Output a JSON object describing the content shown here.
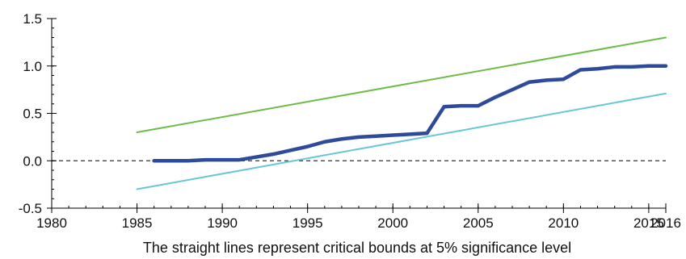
{
  "chart_data": {
    "type": "line",
    "title": "",
    "xlabel": "The straight lines represent critical bounds at 5% significance level",
    "ylabel": "",
    "xlim": [
      1980,
      2016
    ],
    "ylim": [
      -0.5,
      1.5
    ],
    "x_ticks": [
      "1980",
      "1985",
      "1990",
      "1995",
      "2000",
      "2005",
      "2010",
      "2015",
      "2016"
    ],
    "y_ticks": [
      "-0.5",
      "0.0",
      "0.5",
      "1.0",
      "1.5"
    ],
    "x_tick_values": [
      1980,
      1985,
      1990,
      1995,
      2000,
      2005,
      2010,
      2015,
      2016
    ],
    "y_tick_values": [
      -0.5,
      0.0,
      0.5,
      1.0,
      1.5
    ],
    "reference_line": {
      "y": 0.0,
      "style": "dashed",
      "color": "#333333"
    },
    "series": [
      {
        "color": "#6cbd45",
        "x": [
          1985,
          2016
        ],
        "y": [
          0.3,
          1.3
        ]
      },
      {
        "color": "#66c7d6",
        "x": [
          1985,
          2016
        ],
        "y": [
          -0.3,
          0.71
        ]
      },
      {
        "color": "#2e4a9a",
        "x": [
          1986,
          1987,
          1988,
          1989,
          1990,
          1991,
          1992,
          1993,
          1994,
          1995,
          1996,
          1997,
          1998,
          1999,
          2000,
          2001,
          2002,
          2003,
          2004,
          2005,
          2006,
          2007,
          2008,
          2009,
          2010,
          2011,
          2012,
          2013,
          2014,
          2015,
          2016
        ],
        "y": [
          0.0,
          0.0,
          0.0,
          0.01,
          0.01,
          0.01,
          0.04,
          0.07,
          0.11,
          0.15,
          0.2,
          0.23,
          0.25,
          0.26,
          0.27,
          0.28,
          0.29,
          0.57,
          0.58,
          0.58,
          0.67,
          0.75,
          0.83,
          0.85,
          0.86,
          0.96,
          0.97,
          0.99,
          0.99,
          1.0,
          1.0
        ]
      }
    ],
    "grid": false,
    "legend": "none"
  }
}
